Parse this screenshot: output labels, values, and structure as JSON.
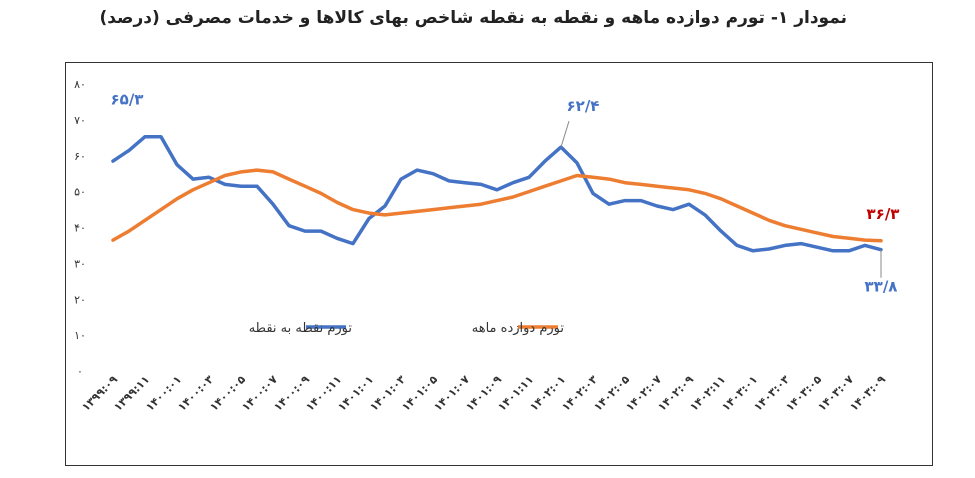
{
  "chart_data": {
    "type": "line",
    "title": "نمودار ۱- تورم دوازده ماهه و نقطه به نقطه شاخص بهای کالاها و خدمات مصرفی (درصد)",
    "xlabel": "",
    "ylabel": "",
    "ylim": [
      0,
      80
    ],
    "y_ticks": [
      "۰",
      "۱۰",
      "۲۰",
      "۳۰",
      "۴۰",
      "۵۰",
      "۶۰",
      "۷۰",
      "۸۰"
    ],
    "x": [
      "۱۳۹۹:۰۹",
      "۱۳۹۹:۱۰",
      "۱۳۹۹:۱۱",
      "۱۳۹۹:۱۲",
      "۱۴۰۰:۰۱",
      "۱۴۰۰:۰۲",
      "۱۴۰۰:۰۳",
      "۱۴۰۰:۰۴",
      "۱۴۰۰:۰۵",
      "۱۴۰۰:۰۶",
      "۱۴۰۰:۰۷",
      "۱۴۰۰:۰۸",
      "۱۴۰۰:۰۹",
      "۱۴۰۰:۱۰",
      "۱۴۰۰:۱۱",
      "۱۴۰۰:۱۲",
      "۱۴۰۱:۰۱",
      "۱۴۰۱:۰۲",
      "۱۴۰۱:۰۳",
      "۱۴۰۱:۰۴",
      "۱۴۰۱:۰۵",
      "۱۴۰۱:۰۶",
      "۱۴۰۱:۰۷",
      "۱۴۰۱:۰۸",
      "۱۴۰۱:۰۹",
      "۱۴۰۱:۱۰",
      "۱۴۰۱:۱۱",
      "۱۴۰۱:۱۲",
      "۱۴۰۲:۰۱",
      "۱۴۰۲:۰۲",
      "۱۴۰۲:۰۳",
      "۱۴۰۲:۰۴",
      "۱۴۰۲:۰۵",
      "۱۴۰۲:۰۶",
      "۱۴۰۲:۰۷",
      "۱۴۰۲:۰۸",
      "۱۴۰۲:۰۹",
      "۱۴۰۲:۱۰",
      "۱۴۰۲:۱۱",
      "۱۴۰۲:۱۲",
      "۱۴۰۳:۰۱",
      "۱۴۰۳:۰۲",
      "۱۴۰۳:۰۳",
      "۱۴۰۳:۰۴",
      "۱۴۰۳:۰۵",
      "۱۴۰۳:۰۶",
      "۱۴۰۳:۰۷",
      "۱۴۰۳:۰۸",
      "۱۴۰۳:۰۹"
    ],
    "x_tick_labels": [
      "۱۳۹۹:۰۹",
      "۱۳۹۹:۱۱",
      "۱۴۰۰:۰۱",
      "۱۴۰۰:۰۳",
      "۱۴۰۰:۰۵",
      "۱۴۰۰:۰۷",
      "۱۴۰۰:۰۹",
      "۱۴۰۰:۱۱",
      "۱۴۰۱:۰۱",
      "۱۴۰۱:۰۳",
      "۱۴۰۱:۰۵",
      "۱۴۰۱:۰۷",
      "۱۴۰۱:۰۹",
      "۱۴۰۱:۱۱",
      "۱۴۰۲:۰۱",
      "۱۴۰۲:۰۳",
      "۱۴۰۲:۰۵",
      "۱۴۰۲:۰۷",
      "۱۴۰۲:۰۹",
      "۱۴۰۲:۱۱",
      "۱۴۰۳:۰۱",
      "۱۴۰۳:۰۳",
      "۱۴۰۳:۰۵",
      "۱۴۰۳:۰۷",
      "۱۴۰۳:۰۹"
    ],
    "series": [
      {
        "name": "تورم نقطه به نقطه",
        "color": "#4472C4",
        "values": [
          58.5,
          61.5,
          65.3,
          65.3,
          57.5,
          53.5,
          54,
          52,
          51.5,
          51.5,
          46.5,
          40.5,
          39,
          39,
          37,
          35.5,
          42.5,
          46,
          53.5,
          56,
          55,
          53,
          52.5,
          52,
          50.5,
          52.5,
          54,
          58.5,
          62.4,
          58,
          49.5,
          46.5,
          47.5,
          47.5,
          46,
          45,
          46.5,
          43.5,
          39,
          35,
          33.5,
          34,
          35,
          35.5,
          34.5,
          33.5,
          33.5,
          35,
          33.8
        ]
      },
      {
        "name": "تورم دوازده ماهه",
        "color": "#ED7D31",
        "values": [
          36.5,
          39,
          42,
          45,
          48,
          50.5,
          52.5,
          54.5,
          55.5,
          56,
          55.5,
          53.5,
          51.5,
          49.5,
          47,
          45,
          44,
          43.5,
          44,
          44.5,
          45,
          45.5,
          46,
          46.5,
          47.5,
          48.5,
          50,
          51.5,
          53,
          54.5,
          54,
          53.5,
          52.5,
          52,
          51.5,
          51,
          50.5,
          49.5,
          48,
          46,
          44,
          42,
          40.5,
          39.5,
          38.5,
          37.5,
          37,
          36.5,
          36.3
        ]
      }
    ],
    "annotations": [
      {
        "text": "۶۵/۳",
        "series": 0,
        "index": 2,
        "color": "#4472C4"
      },
      {
        "text": "۶۲/۴",
        "series": 0,
        "index": 28,
        "color": "#4472C4"
      },
      {
        "text": "۳۶/۳",
        "series": 1,
        "index": 48,
        "color": "#C00000"
      },
      {
        "text": "۳۳/۸",
        "series": 0,
        "index": 48,
        "color": "#4472C4"
      }
    ],
    "legend": "center",
    "grid": false
  }
}
